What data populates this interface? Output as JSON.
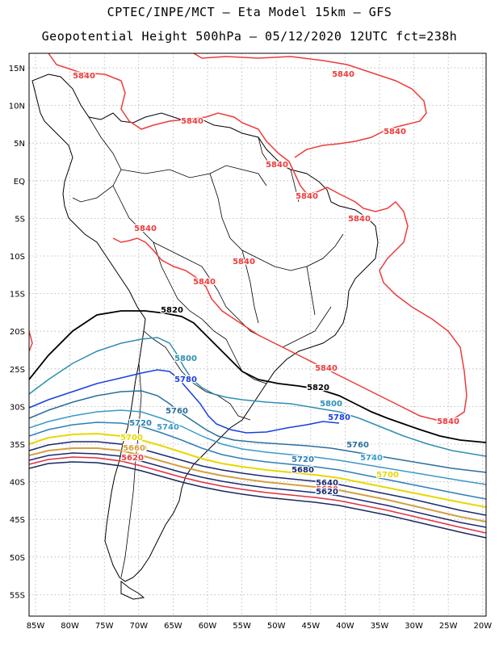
{
  "title_line1": "CPTEC/INPE/MCT –  Eta Model 15km – GFS",
  "title_line2": "Geopotential Height 500hPa – 05/12/2020 12UTC fct=238h",
  "lat_labels": [
    "15N",
    "10N",
    "5N",
    "EQ",
    "5S",
    "10S",
    "15S",
    "20S",
    "25S",
    "30S",
    "35S",
    "40S",
    "45S",
    "50S",
    "55S"
  ],
  "lon_labels": [
    "85W",
    "80W",
    "75W",
    "70W",
    "65W",
    "60W",
    "55W",
    "50W",
    "45W",
    "40W",
    "35W",
    "30W",
    "25W",
    "20W"
  ],
  "contour_labels": [
    {
      "text": "5840",
      "color": "#ee3b3b"
    },
    {
      "text": "5840",
      "color": "#ee3b3b"
    },
    {
      "text": "5840",
      "color": "#ee3b3b"
    },
    {
      "text": "5840",
      "color": "#ee3b3b"
    },
    {
      "text": "5840",
      "color": "#ee3b3b"
    },
    {
      "text": "5840",
      "color": "#ee3b3b"
    },
    {
      "text": "5840",
      "color": "#ee3b3b"
    },
    {
      "text": "5840",
      "color": "#ee3b3b"
    },
    {
      "text": "5840",
      "color": "#ee3b3b"
    },
    {
      "text": "5840",
      "color": "#ee3b3b"
    },
    {
      "text": "5840",
      "color": "#ee3b3b"
    },
    {
      "text": "5840",
      "color": "#ee3b3b"
    },
    {
      "text": "5820",
      "color": "#000000"
    },
    {
      "text": "5820",
      "color": "#000000"
    },
    {
      "text": "5800",
      "color": "#2e8fb0"
    },
    {
      "text": "5800",
      "color": "#2e8fb0"
    },
    {
      "text": "5780",
      "color": "#1a3fe0"
    },
    {
      "text": "5780",
      "color": "#1a3fe0"
    },
    {
      "text": "5760",
      "color": "#2a6f9a"
    },
    {
      "text": "5760",
      "color": "#2a6f9a"
    },
    {
      "text": "5740",
      "color": "#3a9ac8"
    },
    {
      "text": "5740",
      "color": "#3a9ac8"
    },
    {
      "text": "5720",
      "color": "#2c7fb8"
    },
    {
      "text": "5720",
      "color": "#2c7fb8"
    },
    {
      "text": "5700",
      "color": "#e8d800"
    },
    {
      "text": "5700",
      "color": "#e8d800"
    },
    {
      "text": "5680",
      "color": "#1a2a70"
    },
    {
      "text": "5680",
      "color": "#d4a040"
    },
    {
      "text": "5660",
      "color": "#d4a040"
    },
    {
      "text": "5640",
      "color": "#1a2a70"
    },
    {
      "text": "5620",
      "color": "#ee3b3b"
    },
    {
      "text": "5620",
      "color": "#ee3b3b"
    },
    {
      "text": "5620",
      "color": "#1a2a70"
    }
  ],
  "colors": {
    "c5840": "#ee3b3b",
    "c5820": "#000000",
    "c5800": "#2e8fb0",
    "c5780": "#1a3fe0",
    "c5760": "#2a6f9a",
    "c5740": "#3a9ac8",
    "c5720": "#2c7fb8",
    "c5700": "#e8d800",
    "c5680": "#d4a040",
    "c5660": "#e07030",
    "c5640": "#1a2a70",
    "c5620": "#e03040",
    "c5600": "#1a2a60"
  }
}
